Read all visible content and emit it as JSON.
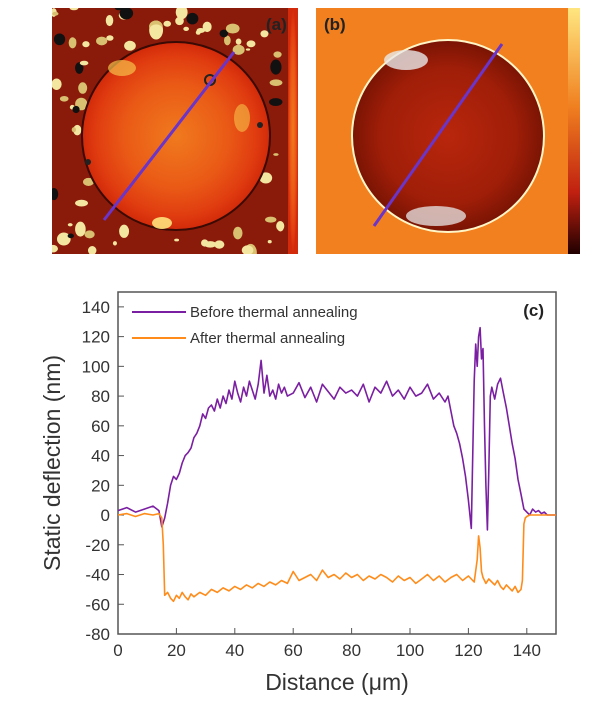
{
  "panels": {
    "a_label": "(a)",
    "b_label": "(b)",
    "c_label": "(c)"
  },
  "colors": {
    "before": "#7b1fa2",
    "after": "#ff8c1a",
    "scan_line": "#6a35c8"
  },
  "chart_data": {
    "type": "line",
    "xlabel": "Distance (μm)",
    "ylabel": "Static deflection (nm)",
    "xlim": [
      0,
      150
    ],
    "ylim": [
      -80,
      150
    ],
    "xticks": [
      0,
      20,
      40,
      60,
      80,
      100,
      120,
      140
    ],
    "yticks": [
      -80,
      -60,
      -40,
      -20,
      0,
      20,
      40,
      60,
      80,
      100,
      120,
      140
    ],
    "legend_position": "top-left",
    "grid": false,
    "series": [
      {
        "name": "Before thermal annealing",
        "color": "#7b1fa2",
        "x": [
          0,
          3,
          6,
          9,
          12,
          14,
          15,
          16,
          17,
          18,
          19,
          20,
          21,
          22,
          23,
          24,
          25,
          26,
          27,
          28,
          29,
          30,
          31,
          32,
          33,
          34,
          35,
          36,
          37,
          38,
          39,
          40,
          41,
          42,
          43,
          44,
          45,
          46,
          47,
          48,
          49,
          50,
          51,
          52,
          53,
          54,
          55,
          56,
          57,
          58,
          60,
          62,
          64,
          66,
          68,
          70,
          72,
          74,
          76,
          78,
          80,
          82,
          84,
          86,
          88,
          90,
          92,
          94,
          96,
          98,
          100,
          102,
          104,
          106,
          108,
          110,
          112,
          113,
          114,
          115,
          116,
          117,
          118,
          119,
          120,
          121,
          122,
          122.5,
          123,
          123.5,
          124,
          124.5,
          125,
          125.5,
          126,
          126.5,
          127,
          127.5,
          128,
          129,
          130,
          131,
          132,
          133,
          134,
          135,
          136,
          137,
          138,
          139,
          140,
          141,
          142,
          143,
          144,
          145,
          146,
          147,
          148,
          149,
          150
        ],
        "values": [
          3,
          5,
          2,
          4,
          6,
          3,
          -8,
          -2,
          8,
          20,
          26,
          24,
          28,
          35,
          40,
          42,
          45,
          52,
          55,
          60,
          68,
          65,
          72,
          74,
          70,
          78,
          72,
          80,
          75,
          84,
          78,
          90,
          82,
          76,
          86,
          80,
          90,
          84,
          78,
          88,
          104,
          82,
          94,
          80,
          84,
          78,
          88,
          82,
          86,
          80,
          82,
          89,
          79,
          86,
          76,
          88,
          83,
          78,
          86,
          82,
          84,
          80,
          88,
          76,
          86,
          82,
          90,
          80,
          84,
          78,
          86,
          80,
          82,
          88,
          78,
          82,
          76,
          80,
          70,
          60,
          55,
          48,
          38,
          26,
          10,
          -9,
          90,
          115,
          100,
          120,
          126,
          105,
          112,
          60,
          20,
          -10,
          30,
          80,
          86,
          78,
          88,
          92,
          82,
          72,
          60,
          48,
          38,
          24,
          14,
          4,
          2,
          0,
          4,
          2,
          3,
          1,
          2,
          0,
          0,
          0,
          0
        ]
      },
      {
        "name": "After thermal annealing",
        "color": "#ff8c1a",
        "x": [
          0,
          3,
          6,
          9,
          12,
          14,
          15,
          15.5,
          16,
          17,
          18,
          19,
          20,
          21,
          22,
          23,
          24,
          25,
          26,
          28,
          30,
          32,
          34,
          36,
          38,
          40,
          42,
          44,
          46,
          48,
          50,
          52,
          54,
          56,
          58,
          60,
          62,
          64,
          66,
          68,
          70,
          72,
          74,
          76,
          78,
          80,
          82,
          84,
          86,
          88,
          90,
          92,
          94,
          96,
          98,
          100,
          102,
          104,
          106,
          108,
          110,
          112,
          114,
          116,
          118,
          120,
          121,
          122,
          123,
          123.5,
          124,
          124.5,
          125,
          125.5,
          126,
          127,
          128,
          129,
          130,
          131,
          132,
          133,
          134,
          135,
          136,
          137,
          138,
          138.5,
          139,
          139.5,
          140,
          141,
          142,
          143,
          144,
          145,
          146,
          147,
          148,
          149,
          150
        ],
        "values": [
          0,
          1,
          -1,
          1,
          0,
          1,
          -2,
          -20,
          -54,
          -52,
          -56,
          -58,
          -54,
          -56,
          -52,
          -55,
          -57,
          -53,
          -55,
          -52,
          -54,
          -50,
          -52,
          -49,
          -51,
          -48,
          -50,
          -47,
          -49,
          -46,
          -48,
          -45,
          -47,
          -44,
          -46,
          -38,
          -44,
          -42,
          -40,
          -44,
          -37,
          -42,
          -40,
          -43,
          -39,
          -42,
          -40,
          -44,
          -41,
          -43,
          -40,
          -42,
          -45,
          -41,
          -44,
          -42,
          -46,
          -43,
          -40,
          -44,
          -41,
          -45,
          -42,
          -40,
          -44,
          -41,
          -43,
          -45,
          -30,
          -14,
          -22,
          -38,
          -42,
          -44,
          -46,
          -43,
          -45,
          -47,
          -44,
          -48,
          -50,
          -47,
          -49,
          -51,
          -48,
          -52,
          -50,
          -44,
          -6,
          -2,
          -1,
          0,
          0,
          0,
          0,
          0,
          0,
          0,
          0,
          0,
          0
        ]
      }
    ]
  }
}
